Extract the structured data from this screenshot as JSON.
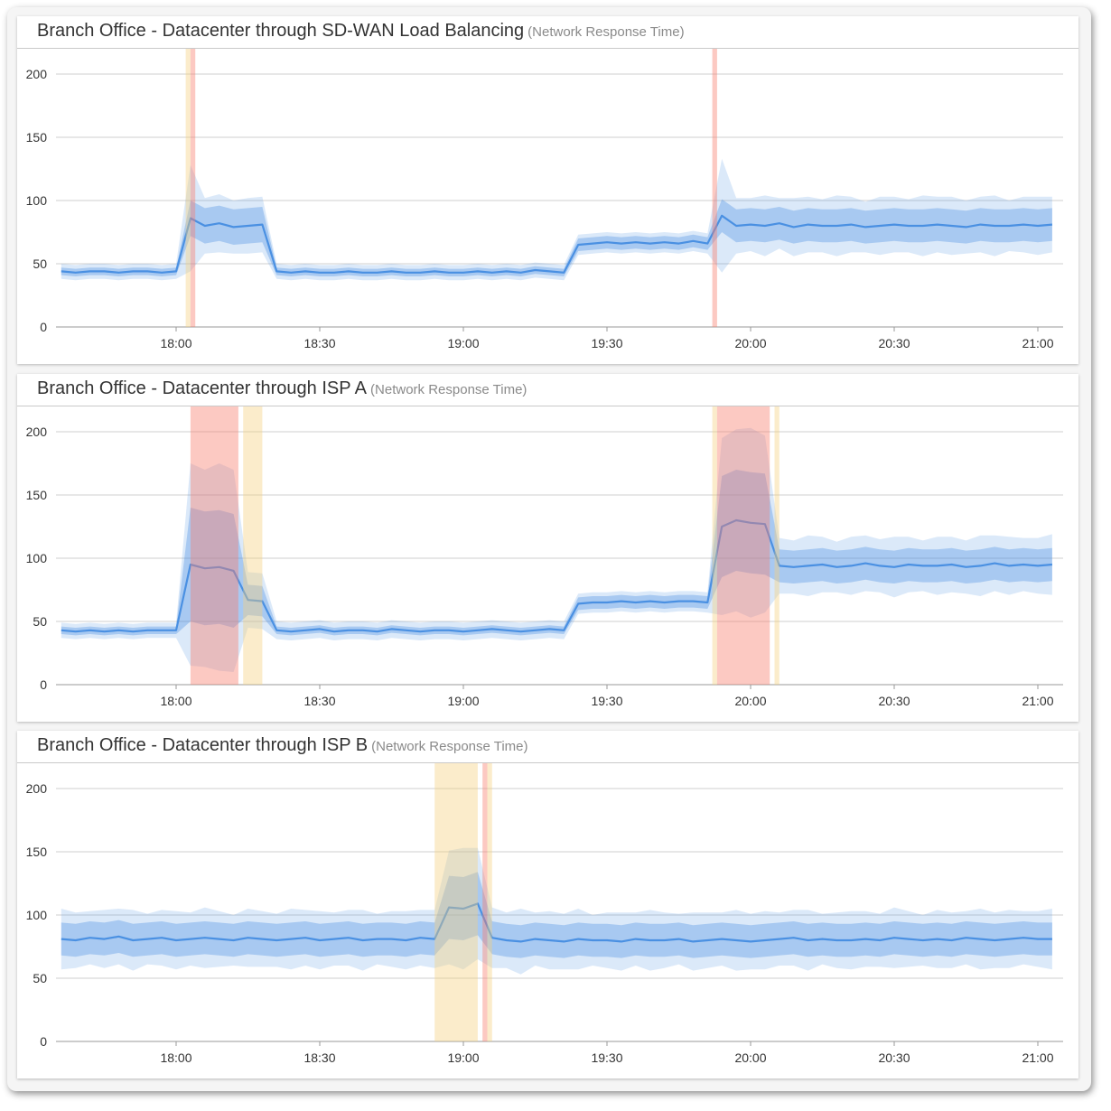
{
  "colors": {
    "mean_line": "#4a90e2",
    "inner_band": "#4a90e2",
    "outer_band": "#4a90e2",
    "critical": "#f77f6e",
    "warning": "#f5cf7e",
    "grid": "#cfcfcf"
  },
  "chart_data": [
    {
      "type": "area",
      "title": "Branch Office - Datacenter through SD-WAN Load Balancing",
      "subtitle": "(Network Response Time)",
      "ylim": [
        0,
        220
      ],
      "yticks": [
        "0",
        "50",
        "100",
        "150",
        "200"
      ],
      "xticks": [
        "18:00",
        "18:30",
        "19:00",
        "19:30",
        "20:00",
        "20:30",
        "21:00"
      ],
      "xlim": [
        "17:35",
        "21:05"
      ],
      "grid": true,
      "start": "17:36",
      "step_minutes": 3,
      "mean": [
        44,
        43,
        44,
        44,
        43,
        44,
        44,
        43,
        44,
        86,
        80,
        82,
        79,
        80,
        81,
        44,
        43,
        44,
        43,
        43,
        44,
        43,
        43,
        44,
        43,
        43,
        44,
        43,
        43,
        44,
        43,
        44,
        43,
        45,
        44,
        43,
        65,
        66,
        67,
        66,
        67,
        66,
        67,
        66,
        68,
        66,
        88,
        80,
        81,
        80,
        82,
        79,
        81,
        80,
        80,
        81,
        79,
        80,
        81,
        80,
        80,
        81,
        80,
        79,
        81,
        80,
        80,
        81,
        80,
        81
      ],
      "inner_spread": [
        3,
        3,
        3,
        3,
        3,
        3,
        3,
        3,
        3,
        14,
        14,
        14,
        14,
        14,
        14,
        3,
        3,
        3,
        3,
        3,
        3,
        3,
        3,
        3,
        3,
        3,
        3,
        3,
        3,
        3,
        3,
        3,
        3,
        3,
        3,
        3,
        5,
        5,
        5,
        5,
        5,
        5,
        5,
        5,
        5,
        5,
        13,
        13,
        13,
        13,
        13,
        13,
        13,
        13,
        13,
        13,
        13,
        13,
        13,
        13,
        13,
        13,
        13,
        13,
        13,
        13,
        13,
        13,
        13,
        13
      ],
      "outer_spread": [
        6,
        6,
        6,
        6,
        6,
        6,
        6,
        6,
        6,
        42,
        22,
        23,
        21,
        22,
        22,
        6,
        6,
        6,
        6,
        6,
        6,
        6,
        6,
        6,
        6,
        6,
        6,
        6,
        6,
        6,
        6,
        6,
        6,
        6,
        6,
        6,
        8,
        8,
        8,
        8,
        8,
        8,
        8,
        8,
        8,
        8,
        45,
        22,
        21,
        24,
        20,
        23,
        22,
        21,
        24,
        22,
        20,
        23,
        22,
        21,
        24,
        22,
        23,
        21,
        22,
        24,
        20,
        22,
        23,
        22
      ],
      "events": [
        {
          "severity": "warning",
          "from": "18:02",
          "to": "18:03"
        },
        {
          "severity": "critical",
          "from": "18:03",
          "to": "18:04"
        },
        {
          "severity": "critical",
          "from": "19:52",
          "to": "19:53"
        }
      ]
    },
    {
      "type": "area",
      "title": "Branch Office - Datacenter through ISP A",
      "subtitle": "(Network Response Time)",
      "ylim": [
        0,
        220
      ],
      "yticks": [
        "0",
        "50",
        "100",
        "150",
        "200"
      ],
      "xticks": [
        "18:00",
        "18:30",
        "19:00",
        "19:30",
        "20:00",
        "20:30",
        "21:00"
      ],
      "xlim": [
        "17:35",
        "21:05"
      ],
      "grid": true,
      "start": "17:36",
      "step_minutes": 3,
      "mean": [
        43,
        42,
        43,
        42,
        43,
        42,
        43,
        43,
        43,
        95,
        92,
        93,
        90,
        67,
        66,
        43,
        42,
        43,
        44,
        42,
        43,
        43,
        42,
        44,
        43,
        42,
        43,
        43,
        42,
        43,
        44,
        43,
        42,
        43,
        44,
        43,
        64,
        65,
        65,
        66,
        65,
        66,
        65,
        66,
        66,
        65,
        125,
        130,
        128,
        127,
        94,
        93,
        94,
        95,
        93,
        94,
        96,
        94,
        93,
        95,
        94,
        94,
        95,
        93,
        94,
        96,
        94,
        95,
        94,
        95
      ],
      "inner_spread": [
        3,
        3,
        3,
        3,
        3,
        3,
        3,
        3,
        3,
        45,
        45,
        45,
        45,
        12,
        12,
        3,
        3,
        3,
        3,
        3,
        3,
        3,
        3,
        3,
        3,
        3,
        3,
        3,
        3,
        3,
        3,
        3,
        3,
        3,
        3,
        3,
        5,
        5,
        5,
        5,
        5,
        5,
        5,
        5,
        5,
        5,
        40,
        40,
        40,
        40,
        13,
        13,
        13,
        13,
        13,
        13,
        13,
        13,
        13,
        13,
        13,
        13,
        13,
        13,
        13,
        13,
        13,
        13,
        13,
        13
      ],
      "outer_spread": [
        6,
        6,
        6,
        6,
        6,
        6,
        6,
        6,
        6,
        80,
        78,
        82,
        80,
        22,
        22,
        7,
        7,
        7,
        7,
        7,
        7,
        7,
        7,
        7,
        7,
        7,
        7,
        7,
        7,
        7,
        7,
        7,
        7,
        7,
        7,
        7,
        8,
        8,
        8,
        8,
        8,
        8,
        8,
        8,
        8,
        8,
        70,
        72,
        75,
        70,
        22,
        21,
        24,
        22,
        20,
        23,
        22,
        21,
        24,
        22,
        20,
        23,
        22,
        21,
        24,
        22,
        23,
        21,
        22,
        24
      ],
      "events": [
        {
          "severity": "critical",
          "from": "18:03",
          "to": "18:13"
        },
        {
          "severity": "warning",
          "from": "18:14",
          "to": "18:18"
        },
        {
          "severity": "warning",
          "from": "19:52",
          "to": "19:53"
        },
        {
          "severity": "critical",
          "from": "19:53",
          "to": "20:04"
        },
        {
          "severity": "warning",
          "from": "20:05",
          "to": "20:06"
        }
      ]
    },
    {
      "type": "area",
      "title": "Branch Office - Datacenter through ISP B",
      "subtitle": "(Network Response Time)",
      "ylim": [
        0,
        220
      ],
      "yticks": [
        "0",
        "50",
        "100",
        "150",
        "200"
      ],
      "xticks": [
        "18:00",
        "18:30",
        "19:00",
        "19:30",
        "20:00",
        "20:30",
        "21:00"
      ],
      "xlim": [
        "17:35",
        "21:05"
      ],
      "grid": true,
      "start": "17:36",
      "step_minutes": 3,
      "mean": [
        81,
        80,
        82,
        81,
        83,
        80,
        81,
        82,
        80,
        81,
        82,
        81,
        80,
        82,
        81,
        80,
        81,
        82,
        80,
        81,
        82,
        80,
        81,
        81,
        80,
        82,
        81,
        106,
        105,
        109,
        82,
        80,
        79,
        81,
        80,
        79,
        81,
        80,
        80,
        79,
        81,
        80,
        80,
        81,
        79,
        80,
        81,
        80,
        79,
        80,
        81,
        82,
        80,
        81,
        80,
        80,
        81,
        80,
        82,
        81,
        80,
        81,
        80,
        82,
        81,
        80,
        81,
        82,
        81,
        81
      ],
      "inner_spread": [
        13,
        13,
        13,
        13,
        13,
        13,
        13,
        13,
        13,
        13,
        13,
        13,
        13,
        13,
        13,
        13,
        13,
        13,
        13,
        13,
        13,
        13,
        13,
        13,
        13,
        13,
        13,
        25,
        25,
        25,
        13,
        13,
        13,
        13,
        13,
        13,
        13,
        13,
        13,
        13,
        13,
        13,
        13,
        13,
        13,
        13,
        13,
        13,
        13,
        13,
        13,
        13,
        13,
        13,
        13,
        13,
        13,
        13,
        13,
        13,
        13,
        13,
        13,
        13,
        13,
        13,
        13,
        13,
        13,
        13
      ],
      "outer_spread": [
        24,
        22,
        21,
        23,
        22,
        24,
        20,
        22,
        23,
        21,
        24,
        22,
        20,
        23,
        22,
        21,
        24,
        22,
        23,
        21,
        22,
        24,
        20,
        22,
        23,
        22,
        23,
        45,
        48,
        44,
        24,
        22,
        26,
        21,
        23,
        22,
        24,
        20,
        22,
        23,
        21,
        24,
        22,
        20,
        23,
        22,
        21,
        24,
        22,
        23,
        21,
        22,
        24,
        20,
        22,
        23,
        22,
        21,
        24,
        22,
        20,
        23,
        22,
        21,
        24,
        22,
        23,
        21,
        22,
        24
      ],
      "events": [
        {
          "severity": "warning",
          "from": "18:54",
          "to": "19:03"
        },
        {
          "severity": "critical",
          "from": "19:04",
          "to": "19:05"
        },
        {
          "severity": "warning",
          "from": "19:05",
          "to": "19:06"
        }
      ]
    }
  ]
}
